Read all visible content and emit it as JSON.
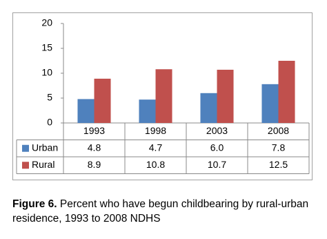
{
  "chart_data": {
    "type": "bar",
    "categories": [
      "1993",
      "1998",
      "2003",
      "2008"
    ],
    "series": [
      {
        "name": "Urban",
        "color": "#4f81bd",
        "values": [
          4.8,
          4.7,
          6.0,
          7.8
        ],
        "value_labels": [
          "4.8",
          "4.7",
          "6.0",
          "7.8"
        ]
      },
      {
        "name": "Rural",
        "color": "#c0504d",
        "values": [
          8.9,
          10.8,
          10.7,
          12.5
        ],
        "value_labels": [
          "8.9",
          "10.8",
          "10.7",
          "12.5"
        ]
      }
    ],
    "ylim": [
      0,
      20
    ],
    "yticks": [
      0,
      5,
      10,
      15,
      20
    ],
    "grid": false
  },
  "caption": {
    "label": "Figure 6.",
    "text": "Percent who have begun childbearing by rural-urban residence, 1993 to 2008 NDHS"
  }
}
